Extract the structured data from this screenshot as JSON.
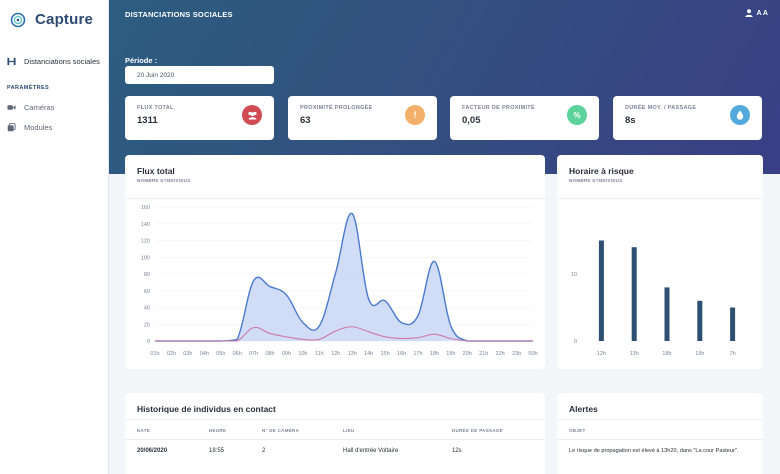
{
  "brand": {
    "name": "Capture"
  },
  "sidebar": {
    "items": [
      {
        "label": "Distanciations sociales",
        "icon": "people-distance-icon"
      }
    ],
    "section_title": "PARAMÈTRES",
    "settings": [
      {
        "label": "Caméras",
        "icon": "camera-icon"
      },
      {
        "label": "Modules",
        "icon": "modules-icon"
      }
    ]
  },
  "header": {
    "title": "DISTANCIATIONS SOCIALES",
    "user_initials": "A A"
  },
  "period": {
    "label": "Période :",
    "value": "20 Juin 2020"
  },
  "stats": [
    {
      "label": "FLUX TOTAL",
      "value": "1311",
      "icon": "users-icon",
      "color": "#d14b55"
    },
    {
      "label": "PROXIMITÉ PROLONGÉE",
      "value": "63",
      "icon": "exclamation-icon",
      "color": "#f3b06a"
    },
    {
      "label": "FACTEUR DE PROXIMITÉ",
      "value": "0,05",
      "icon": "percent-icon",
      "color": "#5bd39a"
    },
    {
      "label": "DURÉE MOY. / PASSAGE",
      "value": "8s",
      "icon": "drop-icon",
      "color": "#54a9dc"
    }
  ],
  "flux_panel": {
    "title": "Flux total",
    "subtitle": "NOMBRE D'INDIVIDUS"
  },
  "risk_panel": {
    "title": "Horaire à risque",
    "subtitle": "NOMBRE D'INDIVIDUS"
  },
  "chart_data": [
    {
      "type": "area",
      "title": "Flux total",
      "ylabel": "NOMBRE D'INDIVIDUS",
      "ylim": [
        0,
        160
      ],
      "yticks": [
        0,
        20,
        40,
        60,
        80,
        100,
        120,
        140,
        160
      ],
      "grid": true,
      "x": [
        "01h",
        "02h",
        "03h",
        "04h",
        "05h",
        "06h",
        "07h",
        "08h",
        "09h",
        "10h",
        "11h",
        "12h",
        "13h",
        "14h",
        "15h",
        "16h",
        "17h",
        "18h",
        "19h",
        "20h",
        "21h",
        "22h",
        "23h",
        "00h"
      ],
      "series": [
        {
          "values": [
            0,
            0,
            0,
            0,
            0,
            2,
            72,
            65,
            55,
            22,
            18,
            82,
            152,
            50,
            48,
            22,
            30,
            95,
            18,
            0,
            0,
            0,
            0,
            0
          ],
          "color": "#4a7ad0",
          "fill": "#c9d6f4"
        },
        {
          "values": [
            0,
            0,
            0,
            0,
            0,
            0,
            16,
            9,
            5,
            2,
            2,
            12,
            17,
            11,
            5,
            3,
            4,
            8,
            3,
            0,
            0,
            0,
            0,
            0
          ],
          "color": "#cf7ba8"
        }
      ]
    },
    {
      "type": "bar",
      "title": "Horaire à risque",
      "ylabel": "NOMBRE D'INDIVIDUS",
      "categories": [
        "12h",
        "13h",
        "18h",
        "19h",
        "7h"
      ],
      "values": [
        15,
        14,
        8,
        6,
        5
      ],
      "ylim": [
        0,
        20
      ],
      "yticks": [
        0,
        10
      ],
      "color": "#2d4f72"
    }
  ],
  "history": {
    "title": "Historique de individus en contact",
    "columns": [
      "DATE",
      "HEURE",
      "N° DE CAMÉRA",
      "LIEU",
      "DURÉE DE PASSAGE"
    ],
    "rows": [
      [
        "20/06/2020",
        "18:55",
        "2",
        "Hall d'entrée Voltaire",
        "12s"
      ]
    ]
  },
  "alerts": {
    "title": "Alertes",
    "column": "OBJET",
    "rows": [
      "Le risque de propagation est élevé à 13h20, dans \"La cour Pasteur\"."
    ]
  }
}
